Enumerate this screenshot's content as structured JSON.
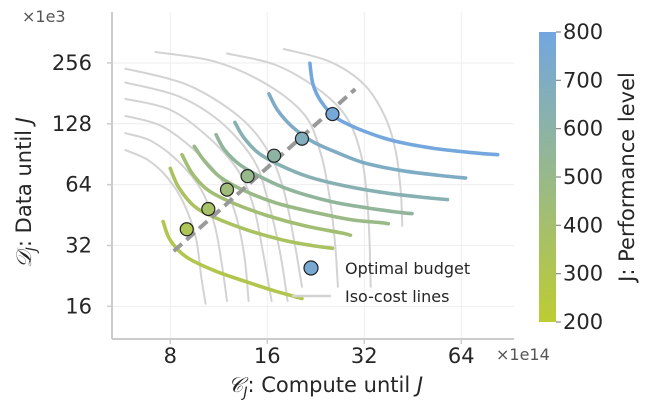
{
  "chart_data": {
    "type": "line",
    "xlabel": "𝒞",
    "xlabel_sub": "J",
    "xlabel_rest": ": Compute until ",
    "xlabel_end": "J",
    "ylabel": "𝒟",
    "ylabel_sub": "J",
    "ylabel_rest": ": Data until ",
    "ylabel_end": "J",
    "x_scale_label": "×1e14",
    "y_scale_label": "×1e3",
    "x_scale": "log2",
    "y_scale": "log2",
    "xlim": [
      6,
      90
    ],
    "ylim": [
      13.5,
      330
    ],
    "x_ticks": [
      8,
      16,
      32,
      64
    ],
    "x_tick_labels": [
      "8",
      "16",
      "32",
      "64"
    ],
    "y_ticks": [
      16,
      32,
      64,
      128,
      256
    ],
    "y_tick_labels": [
      "16",
      "32",
      "64",
      "128",
      "256"
    ],
    "grid": true,
    "colorbar": {
      "label": "J: Performance level",
      "min": 200,
      "max": 800,
      "ticks": [
        200,
        300,
        400,
        500,
        600,
        700,
        800
      ],
      "tick_labels": [
        "200",
        "300",
        "400",
        "500",
        "600",
        "700",
        "800"
      ],
      "color_low": "#bdcc33",
      "color_high": "#73a6e0"
    },
    "series": [
      {
        "level": 290,
        "points": [
          [
            7.6,
            42
          ],
          [
            8.0,
            34
          ],
          [
            9.0,
            28
          ],
          [
            11,
            24
          ],
          [
            14,
            21
          ],
          [
            17,
            19
          ],
          [
            20.5,
            17.5
          ]
        ]
      },
      {
        "level": 355,
        "points": [
          [
            8.0,
            77
          ],
          [
            8.5,
            62
          ],
          [
            9.5,
            50
          ],
          [
            11,
            44
          ],
          [
            14,
            38
          ],
          [
            18,
            34
          ],
          [
            22,
            32
          ],
          [
            25.5,
            31
          ]
        ]
      },
      {
        "level": 420,
        "points": [
          [
            8.7,
            90
          ],
          [
            9.4,
            72
          ],
          [
            10.5,
            60
          ],
          [
            12.5,
            52
          ],
          [
            16,
            45
          ],
          [
            21,
            40
          ],
          [
            27,
            37
          ],
          [
            29,
            36
          ]
        ]
      },
      {
        "level": 490,
        "points": [
          [
            9.5,
            99
          ],
          [
            10.2,
            84
          ],
          [
            11.4,
            70
          ],
          [
            13.5,
            60
          ],
          [
            17,
            52
          ],
          [
            22,
            47
          ],
          [
            29,
            43
          ],
          [
            36,
            41.5
          ],
          [
            38,
            41
          ]
        ]
      },
      {
        "level": 560,
        "points": [
          [
            11.1,
            113
          ],
          [
            11.8,
            95
          ],
          [
            13.2,
            80
          ],
          [
            15.5,
            69
          ],
          [
            19,
            60
          ],
          [
            25,
            53
          ],
          [
            33,
            49
          ],
          [
            42,
            46.5
          ],
          [
            45,
            46
          ]
        ]
      },
      {
        "level": 640,
        "points": [
          [
            12.7,
            130
          ],
          [
            13.5,
            110
          ],
          [
            15.0,
            92
          ],
          [
            17.5,
            80
          ],
          [
            21.5,
            70
          ],
          [
            28,
            63
          ],
          [
            38,
            58
          ],
          [
            51,
            55
          ],
          [
            58,
            54
          ]
        ]
      },
      {
        "level": 705,
        "points": [
          [
            16.2,
            180
          ],
          [
            17.2,
            150
          ],
          [
            19.0,
            125
          ],
          [
            22,
            105
          ],
          [
            26,
            93
          ],
          [
            32,
            82
          ],
          [
            42,
            75
          ],
          [
            55,
            71
          ],
          [
            66,
            69
          ]
        ]
      },
      {
        "level": 790,
        "points": [
          [
            21.7,
            255
          ],
          [
            22.2,
            200
          ],
          [
            23.5,
            165
          ],
          [
            26,
            138
          ],
          [
            31,
            120
          ],
          [
            39,
            106
          ],
          [
            52,
            97
          ],
          [
            70,
            92
          ],
          [
            83,
            90
          ]
        ]
      }
    ],
    "optimal_points": [
      {
        "level": 315,
        "x": 9.0,
        "y": 38.5
      },
      {
        "level": 380,
        "x": 10.5,
        "y": 48.5
      },
      {
        "level": 445,
        "x": 12.0,
        "y": 60.5
      },
      {
        "level": 505,
        "x": 13.9,
        "y": 70.5
      },
      {
        "level": 590,
        "x": 16.8,
        "y": 89
      },
      {
        "level": 680,
        "x": 20.5,
        "y": 108
      },
      {
        "level": 775,
        "x": 25.5,
        "y": 143
      }
    ],
    "optimal_line": [
      [
        8.2,
        30
      ],
      [
        30,
        190
      ]
    ],
    "isocost_lines": [
      [
        [
          5.8,
          240
        ],
        [
          9,
          200
        ],
        [
          13,
          140
        ],
        [
          16,
          95
        ],
        [
          18,
          60
        ],
        [
          19.5,
          32
        ],
        [
          20.5,
          20
        ]
      ],
      [
        [
          5.8,
          205
        ],
        [
          8.5,
          175
        ],
        [
          11.5,
          130
        ],
        [
          14.5,
          85
        ],
        [
          16,
          55
        ],
        [
          17.5,
          30
        ],
        [
          18.5,
          17
        ]
      ],
      [
        [
          5.8,
          170
        ],
        [
          8,
          150
        ],
        [
          10.5,
          110
        ],
        [
          13,
          75
        ],
        [
          14.5,
          50
        ],
        [
          15.5,
          30
        ],
        [
          16.5,
          17
        ]
      ],
      [
        [
          5.8,
          140
        ],
        [
          7.5,
          125
        ],
        [
          9.5,
          95
        ],
        [
          11.5,
          68
        ],
        [
          12.8,
          45
        ],
        [
          13.6,
          28
        ],
        [
          14,
          17
        ]
      ],
      [
        [
          5.8,
          115
        ],
        [
          7,
          105
        ],
        [
          8.5,
          83
        ],
        [
          10,
          60
        ],
        [
          11,
          40
        ],
        [
          11.6,
          25
        ],
        [
          12,
          17
        ]
      ],
      [
        [
          5.8,
          95
        ],
        [
          6.8,
          85
        ],
        [
          7.8,
          70
        ],
        [
          8.8,
          52
        ],
        [
          9.6,
          35
        ],
        [
          10,
          22
        ],
        [
          10.3,
          16.5
        ]
      ],
      [
        [
          7.2,
          290
        ],
        [
          11,
          260
        ],
        [
          16,
          200
        ],
        [
          21,
          140
        ],
        [
          23.5,
          90
        ],
        [
          25,
          55
        ],
        [
          26,
          32
        ],
        [
          26.5,
          20
        ]
      ],
      [
        [
          12,
          285
        ],
        [
          17,
          250
        ],
        [
          23,
          190
        ],
        [
          28,
          140
        ],
        [
          31,
          95
        ],
        [
          32.5,
          60
        ],
        [
          33.2,
          35
        ],
        [
          33.5,
          20
        ]
      ],
      [
        [
          18,
          300
        ],
        [
          25,
          260
        ],
        [
          32,
          200
        ],
        [
          37,
          140
        ],
        [
          40,
          95
        ],
        [
          41.5,
          60
        ],
        [
          42,
          40
        ]
      ]
    ],
    "legend": [
      {
        "label": "Optimal budget",
        "kind": "marker"
      },
      {
        "label": "Iso-cost lines",
        "kind": "line"
      }
    ],
    "colors": {
      "isocost": "#d3d3d3",
      "optimal_line": "#999999",
      "grid": "#eeeeee",
      "axis": "#cccccc"
    }
  }
}
